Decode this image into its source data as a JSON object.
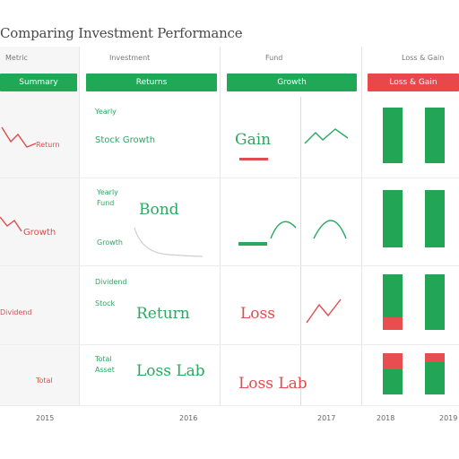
{
  "page": {
    "title": "Comparing Investment Performance"
  },
  "columns": [
    {
      "header": "Metric",
      "button": "Summary"
    },
    {
      "header": "Investment",
      "button": "Returns"
    },
    {
      "header": "Fund",
      "button": "Growth"
    },
    {
      "header": "Loss & Gain",
      "button": "Loss & Gain"
    }
  ],
  "rows": [
    {
      "label": "Return",
      "col1": {
        "top": "Yearly",
        "mid": "Stock  Growth",
        "bottom": ""
      },
      "col2": {
        "big": "Gain"
      }
    },
    {
      "label": "Growth",
      "col1": {
        "top": "Yearly",
        "mid": "Fund",
        "bottom": "Growth"
      },
      "col2": {
        "big": "Bond"
      }
    },
    {
      "label": "Dividend",
      "col1": {
        "top": "Dividend",
        "mid": "Stock",
        "bottom": "Return"
      },
      "col2": {
        "big": "Loss"
      }
    },
    {
      "label": "Total",
      "col1": {
        "top": "Total",
        "mid": "Asset",
        "bottom": ""
      },
      "col2": {
        "big": "Loss Lab"
      }
    }
  ],
  "footer": {
    "left": "2015",
    "mid1": "2016",
    "mid2": "2017",
    "right": "2018",
    "far": "2019"
  },
  "colors": {
    "green": "#1fa855",
    "red": "#e9474a"
  }
}
